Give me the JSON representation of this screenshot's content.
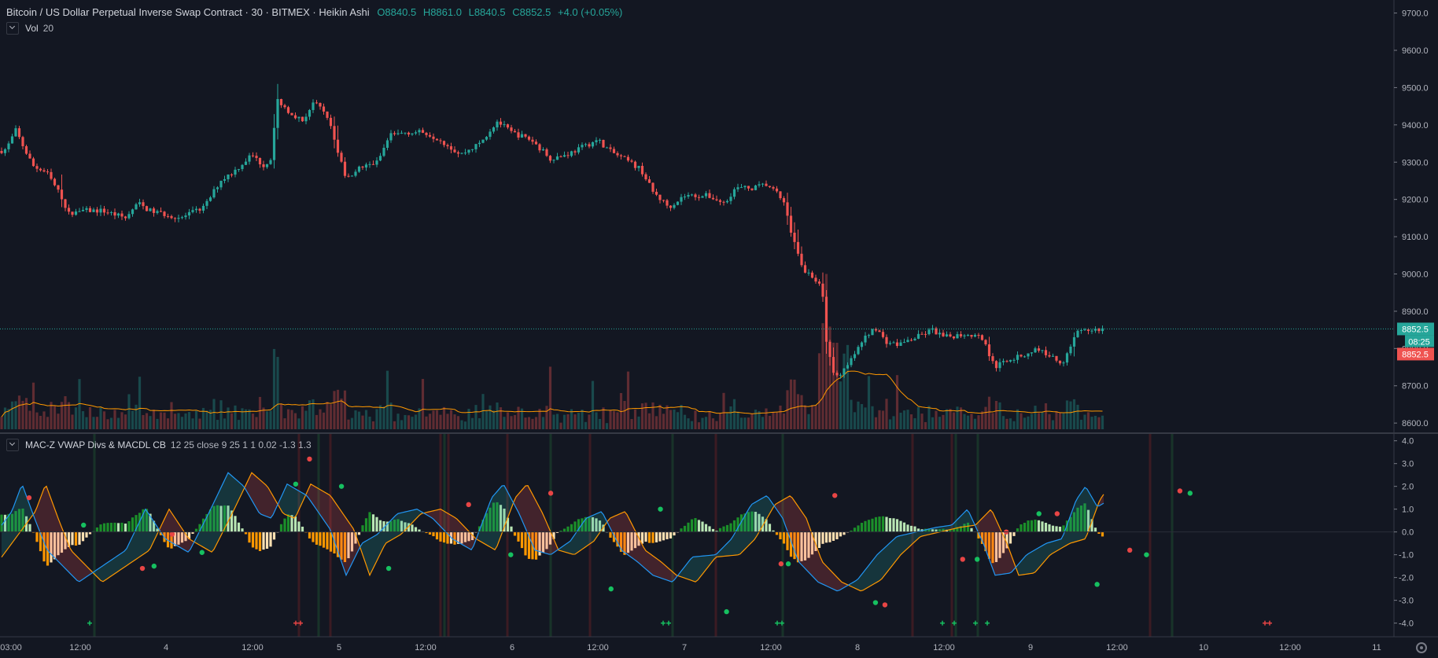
{
  "header": {
    "symbol": "Bitcoin / US Dollar Perpetual Inverse Swap Contract · 30 · BITMEX · Heikin Ashi",
    "open": "O8840.5",
    "high": "H8861.0",
    "low": "L8840.5",
    "close": "C8852.5",
    "change": "+4.0 (+0.05%)"
  },
  "volume_legend": {
    "name": "Vol",
    "params": "20"
  },
  "indicator_legend": {
    "name": "MAC-Z VWAP Divs & MACDL CB",
    "params": "12 25 close 9 25 1 1 0.02 -1.3 1.3"
  },
  "price_badges": {
    "last": "8852.5",
    "countdown": "08:25",
    "bid": "8852.5"
  },
  "colors": {
    "background": "#131722",
    "up": "#26a69a",
    "down": "#ef5350",
    "vol_ma": "#ff9800",
    "macd": "#2196f3"
  },
  "chart_data": [
    {
      "type": "candlestick",
      "style": "Heikin Ashi",
      "y_ticks": [
        9700,
        9600,
        9500,
        9400,
        9300,
        9200,
        9100,
        9000,
        8900,
        8800,
        8700,
        8600
      ],
      "ylim": [
        8575,
        9735
      ],
      "x_ticks": [
        "03:00",
        "12:00",
        "4",
        "12:00",
        "5",
        "12:00",
        "6",
        "12:00",
        "7",
        "12:00",
        "8",
        "12:00",
        "9",
        "12:00",
        "10",
        "12:00",
        "11"
      ],
      "last_price": 8852.5,
      "path": [
        [
          0,
          9330
        ],
        [
          8,
          9335
        ],
        [
          20,
          9385
        ],
        [
          30,
          9340
        ],
        [
          42,
          9290
        ],
        [
          60,
          9270
        ],
        [
          80,
          9200
        ],
        [
          85,
          9160
        ],
        [
          100,
          9170
        ],
        [
          130,
          9170
        ],
        [
          160,
          9150
        ],
        [
          175,
          9190
        ],
        [
          190,
          9170
        ],
        [
          230,
          9150
        ],
        [
          260,
          9180
        ],
        [
          280,
          9250
        ],
        [
          300,
          9280
        ],
        [
          320,
          9320
        ],
        [
          335,
          9290
        ],
        [
          345,
          9310
        ],
        [
          352,
          9470
        ],
        [
          365,
          9440
        ],
        [
          385,
          9410
        ],
        [
          398,
          9460
        ],
        [
          415,
          9430
        ],
        [
          428,
          9340
        ],
        [
          440,
          9250
        ],
        [
          452,
          9280
        ],
        [
          480,
          9300
        ],
        [
          495,
          9370
        ],
        [
          515,
          9380
        ],
        [
          540,
          9380
        ],
        [
          560,
          9360
        ],
        [
          585,
          9320
        ],
        [
          610,
          9350
        ],
        [
          632,
          9410
        ],
        [
          650,
          9380
        ],
        [
          675,
          9360
        ],
        [
          700,
          9310
        ],
        [
          720,
          9320
        ],
        [
          740,
          9340
        ],
        [
          760,
          9360
        ],
        [
          775,
          9330
        ],
        [
          800,
          9300
        ],
        [
          815,
          9280
        ],
        [
          830,
          9220
        ],
        [
          850,
          9180
        ],
        [
          870,
          9210
        ],
        [
          900,
          9210
        ],
        [
          920,
          9190
        ],
        [
          935,
          9230
        ],
        [
          955,
          9230
        ],
        [
          975,
          9240
        ],
        [
          995,
          9200
        ],
        [
          1010,
          9080
        ],
        [
          1020,
          9010
        ],
        [
          1030,
          9000
        ],
        [
          1045,
          8960
        ],
        [
          1050,
          8820
        ],
        [
          1060,
          8730
        ],
        [
          1070,
          8730
        ],
        [
          1085,
          8780
        ],
        [
          1100,
          8830
        ],
        [
          1112,
          8860
        ],
        [
          1125,
          8820
        ],
        [
          1140,
          8810
        ],
        [
          1165,
          8830
        ],
        [
          1185,
          8850
        ],
        [
          1200,
          8830
        ],
        [
          1230,
          8840
        ],
        [
          1248,
          8830
        ],
        [
          1265,
          8750
        ],
        [
          1280,
          8770
        ],
        [
          1300,
          8780
        ],
        [
          1318,
          8800
        ],
        [
          1335,
          8780
        ],
        [
          1350,
          8760
        ],
        [
          1368,
          8840
        ],
        [
          1385,
          8850
        ],
        [
          1405,
          8852.5
        ]
      ]
    },
    {
      "type": "bar",
      "series_label": "Vol",
      "length": 20
    },
    {
      "type": "line",
      "series_label": "MAC-Z VWAP Divs & MACDL CB",
      "y_ticks": [
        4.0,
        3.0,
        2.0,
        1.0,
        0.0,
        -1.0,
        -2.0,
        -3.0,
        -4.0
      ],
      "ylim": [
        -4.6,
        4.3
      ],
      "path": [
        [
          0,
          0.2
        ],
        [
          15,
          0.9
        ],
        [
          28,
          2.1
        ],
        [
          45,
          0.5
        ],
        [
          60,
          -0.8
        ],
        [
          80,
          -1.5
        ],
        [
          100,
          -2.2
        ],
        [
          130,
          -1.5
        ],
        [
          160,
          -0.8
        ],
        [
          185,
          1.0
        ],
        [
          210,
          -0.3
        ],
        [
          240,
          -0.9
        ],
        [
          265,
          0.8
        ],
        [
          290,
          2.6
        ],
        [
          310,
          2.0
        ],
        [
          330,
          0.8
        ],
        [
          345,
          0.6
        ],
        [
          365,
          2.1
        ],
        [
          390,
          1.6
        ],
        [
          420,
          0.1
        ],
        [
          440,
          -1.9
        ],
        [
          460,
          -0.5
        ],
        [
          480,
          -0.1
        ],
        [
          505,
          0.8
        ],
        [
          530,
          1.0
        ],
        [
          550,
          0.6
        ],
        [
          575,
          -0.3
        ],
        [
          600,
          -0.8
        ],
        [
          625,
          1.5
        ],
        [
          640,
          2.1
        ],
        [
          660,
          0.8
        ],
        [
          680,
          -0.8
        ],
        [
          700,
          -1.0
        ],
        [
          725,
          -0.4
        ],
        [
          745,
          0.6
        ],
        [
          765,
          0.9
        ],
        [
          790,
          -0.8
        ],
        [
          810,
          -1.3
        ],
        [
          830,
          -1.9
        ],
        [
          855,
          -2.2
        ],
        [
          880,
          -1.1
        ],
        [
          910,
          -1.0
        ],
        [
          930,
          -0.3
        ],
        [
          955,
          1.2
        ],
        [
          975,
          1.6
        ],
        [
          995,
          0.6
        ],
        [
          1015,
          -1.3
        ],
        [
          1040,
          -2.2
        ],
        [
          1065,
          -2.6
        ],
        [
          1090,
          -2.1
        ],
        [
          1115,
          -1.0
        ],
        [
          1140,
          -0.2
        ],
        [
          1165,
          0.0
        ],
        [
          1190,
          0.2
        ],
        [
          1210,
          0.3
        ],
        [
          1230,
          1.0
        ],
        [
          1250,
          -0.5
        ],
        [
          1265,
          -1.9
        ],
        [
          1285,
          -1.8
        ],
        [
          1305,
          -1.0
        ],
        [
          1330,
          -0.5
        ],
        [
          1350,
          -0.3
        ],
        [
          1368,
          1.4
        ],
        [
          1380,
          2.0
        ],
        [
          1395,
          1.1
        ],
        [
          1405,
          1.3
        ]
      ]
    }
  ]
}
